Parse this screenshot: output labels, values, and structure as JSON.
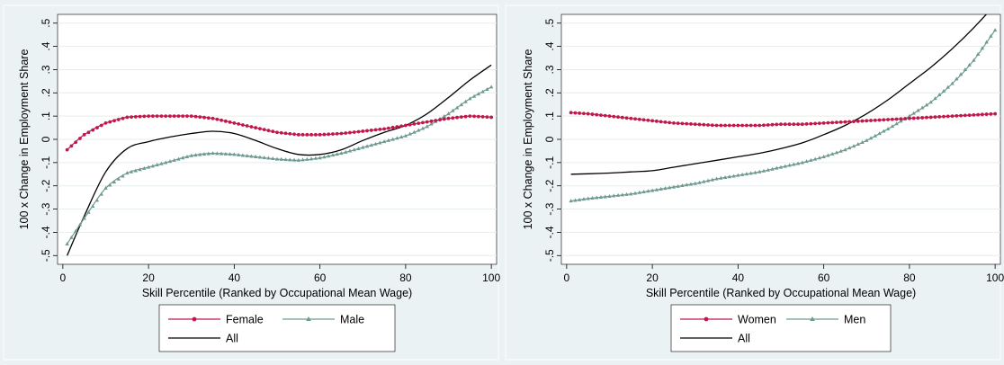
{
  "chart_data": [
    {
      "type": "line",
      "xlabel": "Skill Percentile (Ranked by Occupational Mean Wage)",
      "ylabel": "100 x Change in Employment Share",
      "xlim": [
        0,
        100
      ],
      "ylim": [
        -0.5,
        0.5
      ],
      "xticks": [
        "0",
        "20",
        "40",
        "60",
        "80",
        "100"
      ],
      "yticks": [
        "-.5",
        "-.4",
        "-.3",
        "-.2",
        "-.1",
        "0",
        ".1",
        ".2",
        ".3",
        ".4",
        ".5"
      ],
      "grid": true,
      "legend_placement": "bottom",
      "x": [
        1,
        5,
        10,
        15,
        20,
        25,
        30,
        35,
        40,
        45,
        50,
        55,
        60,
        65,
        70,
        75,
        80,
        85,
        90,
        95,
        100
      ],
      "series": [
        {
          "name": "Female",
          "color": "#c0184b",
          "marker": "circle",
          "values": [
            -0.045,
            0.02,
            0.07,
            0.095,
            0.1,
            0.1,
            0.1,
            0.09,
            0.07,
            0.05,
            0.03,
            0.02,
            0.02,
            0.025,
            0.035,
            0.045,
            0.06,
            0.075,
            0.09,
            0.1,
            0.095
          ]
        },
        {
          "name": "Male",
          "color": "#6f9a91",
          "marker": "triangle",
          "values": [
            -0.45,
            -0.34,
            -0.21,
            -0.145,
            -0.12,
            -0.095,
            -0.07,
            -0.06,
            -0.065,
            -0.075,
            -0.085,
            -0.09,
            -0.08,
            -0.06,
            -0.035,
            -0.01,
            0.015,
            0.055,
            0.11,
            0.175,
            0.225
          ]
        },
        {
          "name": "All",
          "color": "#000000",
          "marker": "none",
          "values": [
            -0.5,
            -0.33,
            -0.14,
            -0.04,
            -0.01,
            0.01,
            0.025,
            0.035,
            0.025,
            -0.005,
            -0.04,
            -0.065,
            -0.065,
            -0.045,
            -0.005,
            0.03,
            0.06,
            0.11,
            0.18,
            0.255,
            0.32
          ]
        }
      ]
    },
    {
      "type": "line",
      "xlabel": "Skill Percentile (Ranked by Occupational Mean Wage)",
      "ylabel": "100 x Change in Employment Share",
      "xlim": [
        0,
        100
      ],
      "ylim": [
        -0.5,
        0.5
      ],
      "xticks": [
        "0",
        "20",
        "40",
        "60",
        "80",
        "100"
      ],
      "yticks": [
        "-.5",
        "-.4",
        "-.3",
        "-.2",
        "-.1",
        "0",
        ".1",
        ".2",
        ".3",
        ".4",
        ".5"
      ],
      "grid": true,
      "legend_placement": "bottom",
      "x": [
        1,
        5,
        10,
        15,
        20,
        25,
        30,
        35,
        40,
        45,
        50,
        55,
        60,
        65,
        70,
        75,
        80,
        85,
        90,
        95,
        100
      ],
      "series": [
        {
          "name": "Women",
          "color": "#c0184b",
          "marker": "circle",
          "values": [
            0.115,
            0.11,
            0.1,
            0.09,
            0.08,
            0.07,
            0.065,
            0.06,
            0.06,
            0.06,
            0.065,
            0.065,
            0.07,
            0.075,
            0.08,
            0.085,
            0.09,
            0.095,
            0.1,
            0.105,
            0.11
          ]
        },
        {
          "name": "Men",
          "color": "#6f9a91",
          "marker": "triangle",
          "values": [
            -0.265,
            -0.255,
            -0.245,
            -0.235,
            -0.22,
            -0.205,
            -0.19,
            -0.17,
            -0.155,
            -0.14,
            -0.12,
            -0.1,
            -0.075,
            -0.045,
            -0.005,
            0.045,
            0.1,
            0.16,
            0.24,
            0.34,
            0.47
          ]
        },
        {
          "name": "All",
          "color": "#000000",
          "marker": "none",
          "values": [
            -0.15,
            -0.148,
            -0.145,
            -0.14,
            -0.135,
            -0.12,
            -0.105,
            -0.09,
            -0.075,
            -0.06,
            -0.04,
            -0.015,
            0.02,
            0.06,
            0.11,
            0.17,
            0.24,
            0.31,
            0.39,
            0.48,
            0.58
          ]
        }
      ]
    }
  ]
}
